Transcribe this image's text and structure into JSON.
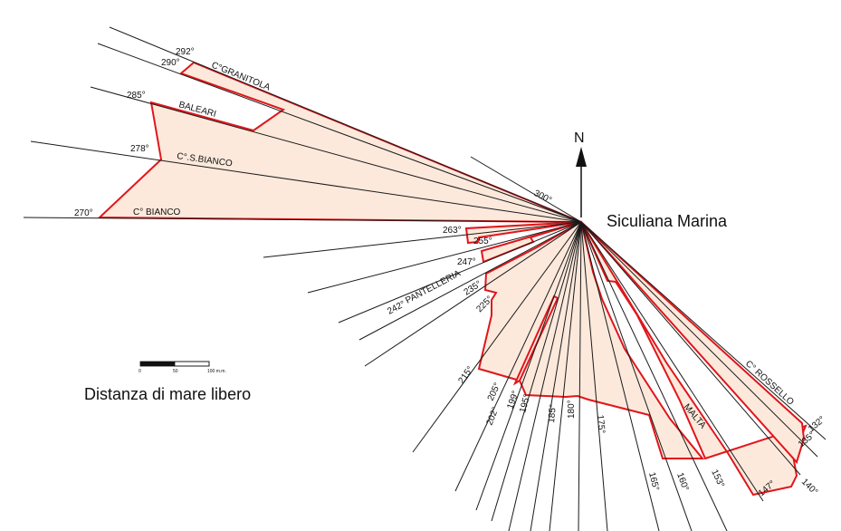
{
  "diagram": {
    "location_label": "Siculiana Marina",
    "north_label": "N",
    "legend_label": "Distanza di mare libero",
    "scale_ticks": [
      "0",
      "50",
      "100 m.m."
    ],
    "direction_labels": [
      "300°",
      "292°",
      "290°",
      "285°",
      "278°",
      "270°",
      "263°",
      "255°",
      "247°",
      "242°",
      "235°",
      "225°",
      "215°",
      "205°",
      "202°",
      "199°",
      "195°",
      "185°",
      "180°",
      "175°",
      "165°",
      "160°",
      "153°",
      "147°",
      "140°",
      "135°",
      "132°"
    ],
    "sector_labels": [
      "C°GRANITOLA",
      "BALEARI",
      "C°.S.BIANCO",
      "C° BIANCO",
      "PANTELLERIA",
      "MALTA",
      "C° ROSSELLO"
    ]
  }
}
